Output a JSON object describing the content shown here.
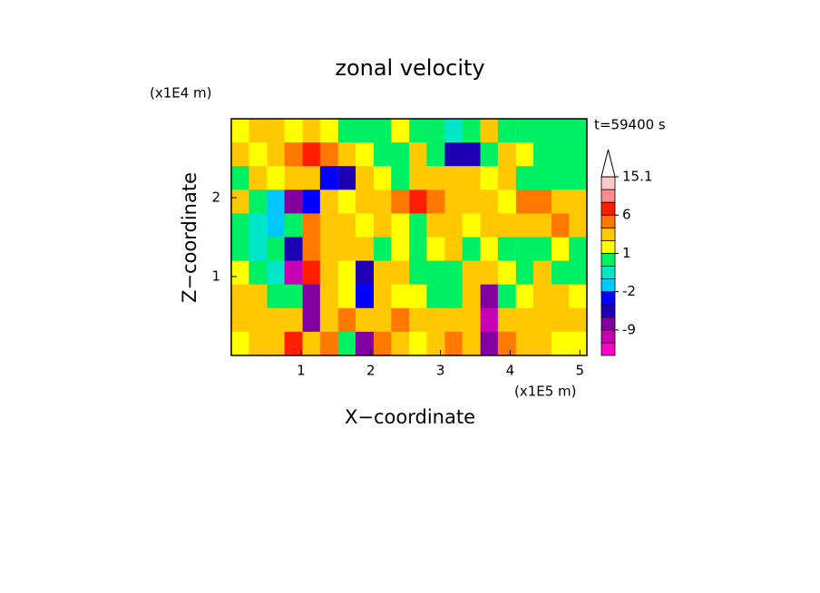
{
  "chart_data": {
    "type": "contour",
    "title": "zonal velocity",
    "y_unit": "(x1E4 m)",
    "x_unit": "(x1E5 m)",
    "annotation": "t=59400 s",
    "x_label": "X−coordinate",
    "y_label": "Z−coordinate",
    "xlim": [
      0,
      5.1
    ],
    "ylim": [
      0,
      3
    ],
    "xticks": [
      1,
      2,
      3,
      4,
      5
    ],
    "yticks": [
      1,
      2
    ],
    "x": [
      0.13,
      0.38,
      0.64,
      0.89,
      1.15,
      1.4,
      1.66,
      1.91,
      2.17,
      2.42,
      2.68,
      2.93,
      3.19,
      3.44,
      3.7,
      3.95,
      4.21,
      4.46,
      4.72,
      4.97
    ],
    "y": [
      2.85,
      2.55,
      2.25,
      1.95,
      1.65,
      1.35,
      1.05,
      0.75,
      0.45,
      0.15
    ],
    "z": [
      [
        1,
        2,
        3,
        1,
        2,
        1,
        0,
        0,
        0,
        1,
        0,
        0,
        -1,
        0,
        2,
        0,
        0,
        0,
        0,
        0
      ],
      [
        2,
        1,
        3,
        4,
        6,
        4,
        2,
        1,
        0,
        0,
        2,
        0,
        -6,
        -5,
        0,
        2,
        1,
        0,
        0,
        0
      ],
      [
        0,
        2,
        1,
        2,
        2,
        -3,
        -6,
        2,
        1,
        0,
        2,
        3,
        2,
        2,
        1,
        2,
        0,
        0,
        0,
        0
      ],
      [
        2,
        0,
        -2,
        -8,
        -3,
        2,
        1,
        2,
        3,
        4,
        6,
        4,
        3,
        3,
        2,
        1,
        4,
        5,
        3,
        2
      ],
      [
        0,
        -1,
        -2,
        0,
        4,
        3,
        2,
        1,
        2,
        1,
        0,
        3,
        2,
        1,
        2,
        3,
        2,
        2,
        4,
        2
      ],
      [
        0,
        -1,
        0,
        -6,
        5,
        3,
        2,
        2,
        0,
        1,
        0,
        1,
        2,
        0,
        1,
        0,
        0,
        0,
        1,
        0
      ],
      [
        1,
        0,
        -1,
        -12,
        6,
        2,
        1,
        -6,
        2,
        3,
        0,
        0,
        0,
        2,
        3,
        1,
        0,
        2,
        0,
        0
      ],
      [
        2,
        2,
        0,
        0,
        -9,
        2,
        1,
        -3,
        3,
        1,
        1,
        0,
        0,
        2,
        -9,
        0,
        1,
        2,
        2,
        1
      ],
      [
        2,
        3,
        2,
        3,
        -9,
        2,
        4,
        2,
        3,
        4,
        2,
        2,
        3,
        2,
        -12,
        2,
        3,
        2,
        3,
        2
      ],
      [
        1,
        2,
        3,
        6,
        2,
        4,
        0,
        -9,
        4,
        2,
        1,
        2,
        4,
        2,
        -9,
        4,
        3,
        2,
        1,
        1
      ]
    ],
    "colorbar": {
      "levels": [
        -15,
        -12,
        -9,
        -6,
        -3,
        -2,
        -1,
        0,
        1,
        2,
        4,
        6,
        9,
        12,
        15.1
      ],
      "colors": [
        "#ff00c8",
        "#c800b4",
        "#8200a0",
        "#1e00b4",
        "#0000ff",
        "#00c8ff",
        "#00e6c8",
        "#00f064",
        "#ffff00",
        "#ffc800",
        "#ff7800",
        "#ff1e00",
        "#ff8c8c",
        "#ffc8c8"
      ],
      "ticks": [
        15.1,
        6,
        1,
        -2,
        -9
      ],
      "extend": "max"
    }
  }
}
